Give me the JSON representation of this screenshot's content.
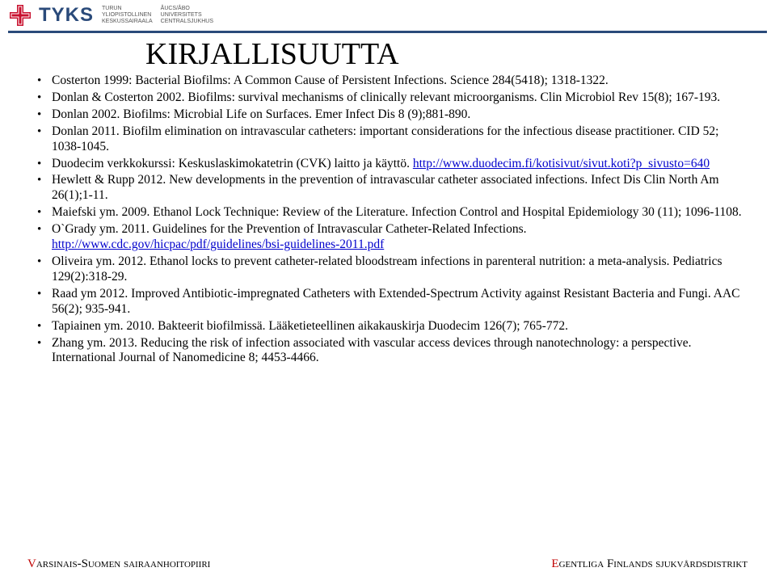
{
  "header": {
    "brand": "TYKS",
    "col1": [
      "TURUN",
      "YLIOPISTOLLINEN",
      "KESKUSSAIRAALA"
    ],
    "col2": [
      "ÅUCS/ÅBO",
      "UNIVERSITETS",
      "CENTRALSJUKHUS"
    ]
  },
  "title": "KIRJALLISUUTTA",
  "refs": [
    {
      "text": "Costerton 1999: Bacterial Biofilms: A Common Cause of Persistent Infections. Science 284(5418); 1318-1322."
    },
    {
      "text": "Donlan & Costerton 2002. Biofilms: survival mechanisms of clinically relevant microorganisms. Clin Microbiol Rev 15(8); 167-193."
    },
    {
      "text": "Donlan 2002. Biofilms: Microbial Life on Surfaces. Emer Infect Dis 8 (9);881-890."
    },
    {
      "text": "Donlan 2011. Biofilm elimination on intravascular catheters: important considerations for the infectious disease practitioner. CID 52; 1038-1045."
    },
    {
      "text": "Duodecim verkkokurssi: Keskuslaskimokatetrin (CVK) laitto ja käyttö. ",
      "link": "http://www.duodecim.fi/kotisivut/sivut.koti?p_sivusto=640"
    },
    {
      "text": "Hewlett & Rupp 2012. New developments in the prevention of intravascular catheter associated infections. Infect Dis Clin North Am 26(1);1-11."
    },
    {
      "text": "Maiefski ym. 2009. Ethanol Lock Technique: Review of the Literature. Infection Control and Hospital Epidemiology 30 (11); 1096-1108."
    },
    {
      "text": "O`Grady ym. 2011. Guidelines for the Prevention of Intravascular Catheter-Related Infections. ",
      "link": "http://www.cdc.gov/hicpac/pdf/guidelines/bsi-guidelines-2011.pdf"
    },
    {
      "text": "Oliveira ym. 2012. Ethanol locks to prevent catheter-related bloodstream infections in parenteral nutrition: a meta-analysis. Pediatrics 129(2):318-29."
    },
    {
      "text": "Raad ym 2012. Improved Antibiotic-impregnated Catheters with Extended-Spectrum Activity against Resistant Bacteria and Fungi. AAC 56(2); 935-941."
    },
    {
      "text": "Tapiainen ym. 2010. Bakteerit biofilmissä. Lääketieteellinen aikakauskirja Duodecim 126(7); 765-772."
    },
    {
      "text": "Zhang ym. 2013. Reducing the risk of infection associated with vascular access devices through nanotechnology: a perspective. International Journal of Nanomedicine 8; 4453-4466."
    }
  ],
  "footer": {
    "left_initial": "V",
    "left_rest": "arsinais-Suomen sairaanhoitopiiri",
    "right_initial": "E",
    "right_rest": "gentliga Finlands sjukvårdsdistrikt"
  },
  "colors": {
    "rule": "#2a4a7a",
    "link": "#0000cc",
    "accent_red": "#c00000"
  }
}
